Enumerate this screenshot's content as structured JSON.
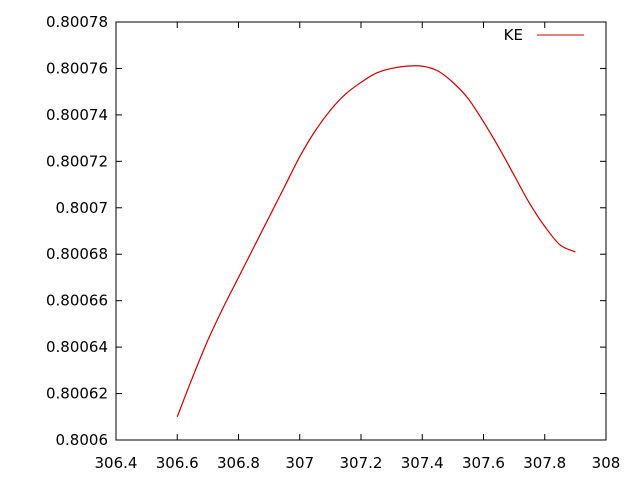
{
  "chart_data": {
    "type": "line",
    "title": "",
    "xlabel": "",
    "ylabel": "",
    "xlim": [
      306.4,
      308
    ],
    "ylim": [
      0.8006,
      0.80078
    ],
    "x_ticks": [
      "306.4",
      "306.6",
      "306.8",
      "307",
      "307.2",
      "307.4",
      "307.6",
      "307.8",
      "308"
    ],
    "y_ticks": [
      "0.8006",
      "0.80062",
      "0.80064",
      "0.80066",
      "0.80068",
      "0.8007",
      "0.80072",
      "0.80074",
      "0.80076",
      "0.80078"
    ],
    "grid": false,
    "legend_position": "top-right",
    "series": [
      {
        "name": "KE",
        "color": "#cc0000",
        "x": [
          306.6,
          306.65,
          306.7,
          306.75,
          306.8,
          306.85,
          306.9,
          306.95,
          307.0,
          307.05,
          307.1,
          307.15,
          307.2,
          307.25,
          307.3,
          307.35,
          307.4,
          307.45,
          307.5,
          307.55,
          307.6,
          307.65,
          307.7,
          307.75,
          307.8,
          307.85,
          307.9
        ],
        "y": [
          0.80061,
          0.800627,
          0.800643,
          0.800657,
          0.80067,
          0.800683,
          0.800696,
          0.800709,
          0.800722,
          0.800733,
          0.800742,
          0.800749,
          0.800754,
          0.800758,
          0.80076,
          0.800761,
          0.800761,
          0.800759,
          0.800754,
          0.800747,
          0.800737,
          0.800726,
          0.800714,
          0.800702,
          0.800692,
          0.800684,
          0.800681
        ]
      }
    ]
  }
}
